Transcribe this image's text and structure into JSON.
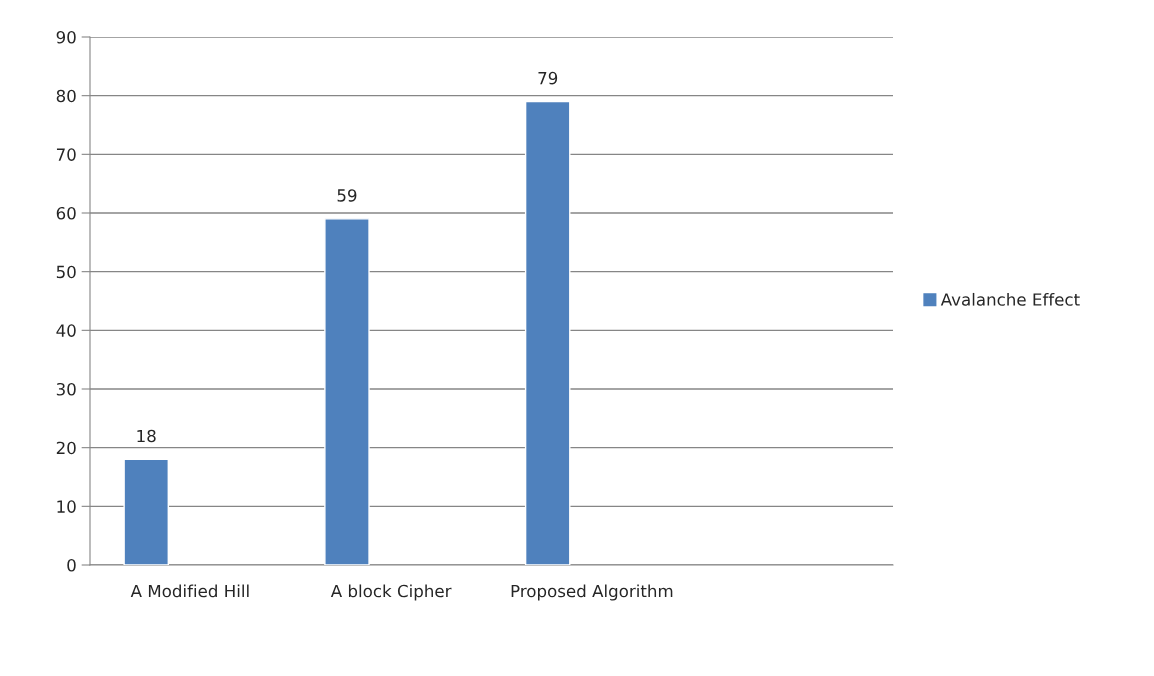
{
  "chart_data": {
    "type": "bar",
    "categories": [
      "A Modified Hill",
      "A block Cipher",
      "Proposed Algorithm",
      null
    ],
    "series": [
      {
        "name": "Avalanche Effect",
        "color": "#4f81bd",
        "values": [
          18,
          59,
          79,
          null
        ]
      }
    ],
    "ylim": [
      0,
      90
    ],
    "yticks": [
      0,
      10,
      20,
      30,
      40,
      50,
      60,
      70,
      80,
      90
    ],
    "grid": "y",
    "legend": "right",
    "data_labels": true
  }
}
